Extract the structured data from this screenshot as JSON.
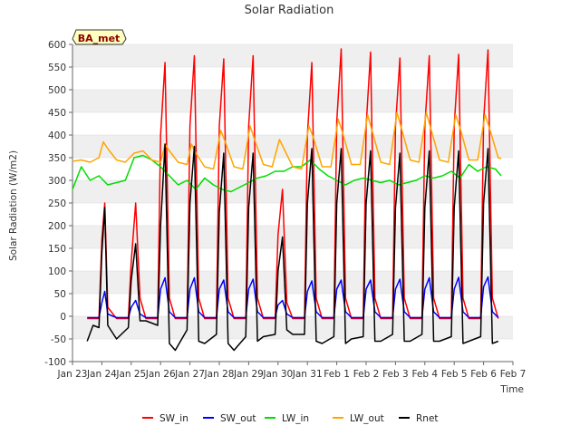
{
  "chart_data": {
    "type": "line",
    "title": "Solar Radiation",
    "xlabel": "Time",
    "ylabel": "Solar Radiation (W/m2)",
    "badge": "BA_met",
    "ylim": [
      -100,
      600
    ],
    "xlim": [
      0,
      15
    ],
    "yticks": [
      -100,
      -50,
      0,
      50,
      100,
      150,
      200,
      250,
      300,
      350,
      400,
      450,
      500,
      550,
      600
    ],
    "xticks": [
      {
        "pos": 0,
        "label": "Jan 23"
      },
      {
        "pos": 1,
        "label": "Jan 24"
      },
      {
        "pos": 2,
        "label": "Jan 25"
      },
      {
        "pos": 3,
        "label": "Jan 26"
      },
      {
        "pos": 4,
        "label": "Jan 27"
      },
      {
        "pos": 5,
        "label": "Jan 28"
      },
      {
        "pos": 6,
        "label": "Jan 29"
      },
      {
        "pos": 7,
        "label": "Jan 30"
      },
      {
        "pos": 8,
        "label": "Jan 31"
      },
      {
        "pos": 9,
        "label": "Feb 1"
      },
      {
        "pos": 10,
        "label": "Feb 2"
      },
      {
        "pos": 11,
        "label": "Feb 3"
      },
      {
        "pos": 12,
        "label": "Feb 4"
      },
      {
        "pos": 13,
        "label": "Feb 5"
      },
      {
        "pos": 14,
        "label": "Feb 6"
      },
      {
        "pos": 15,
        "label": "Feb 7"
      }
    ],
    "grid": true,
    "legend_position": "bottom",
    "series": [
      {
        "name": "SW_in",
        "color": "#ff0000",
        "x": [
          0.5,
          0.9,
          1.0,
          1.1,
          1.2,
          1.5,
          1.9,
          2.0,
          2.15,
          2.3,
          2.5,
          2.9,
          3.0,
          3.15,
          3.3,
          3.5,
          3.9,
          4.0,
          4.15,
          4.3,
          4.5,
          4.9,
          5.0,
          5.15,
          5.3,
          5.5,
          5.9,
          6.0,
          6.15,
          6.3,
          6.5,
          6.9,
          7.0,
          7.15,
          7.3,
          7.5,
          7.9,
          8.0,
          8.15,
          8.3,
          8.5,
          8.9,
          9.0,
          9.15,
          9.3,
          9.5,
          9.9,
          10.0,
          10.15,
          10.3,
          10.5,
          10.9,
          11.0,
          11.15,
          11.3,
          11.5,
          11.9,
          12.0,
          12.15,
          12.3,
          12.5,
          12.9,
          13.0,
          13.15,
          13.3,
          13.5,
          13.9,
          14.0,
          14.15,
          14.3,
          14.5
        ],
        "y": [
          -5,
          -5,
          170,
          250,
          20,
          -5,
          -5,
          120,
          250,
          40,
          -5,
          -5,
          400,
          560,
          40,
          -5,
          -5,
          420,
          575,
          40,
          -5,
          -5,
          420,
          568,
          40,
          -5,
          -5,
          420,
          575,
          40,
          -5,
          -5,
          180,
          280,
          30,
          -5,
          -5,
          400,
          560,
          40,
          -5,
          -5,
          430,
          590,
          40,
          -5,
          -5,
          420,
          583,
          40,
          -5,
          -5,
          420,
          570,
          40,
          -5,
          -5,
          420,
          575,
          40,
          -5,
          -5,
          420,
          578,
          40,
          -5,
          -5,
          430,
          588,
          40,
          -5
        ]
      },
      {
        "name": "SW_out",
        "color": "#0000ff",
        "x": [
          0.5,
          0.9,
          1.0,
          1.1,
          1.2,
          1.5,
          1.9,
          2.0,
          2.15,
          2.3,
          2.5,
          2.9,
          3.0,
          3.15,
          3.3,
          3.5,
          3.9,
          4.0,
          4.15,
          4.3,
          4.5,
          4.9,
          5.0,
          5.15,
          5.3,
          5.5,
          5.9,
          6.0,
          6.15,
          6.3,
          6.5,
          6.9,
          7.0,
          7.15,
          7.3,
          7.5,
          7.9,
          8.0,
          8.15,
          8.3,
          8.5,
          8.9,
          9.0,
          9.15,
          9.3,
          9.5,
          9.9,
          10.0,
          10.15,
          10.3,
          10.5,
          10.9,
          11.0,
          11.15,
          11.3,
          11.5,
          11.9,
          12.0,
          12.15,
          12.3,
          12.5,
          12.9,
          13.0,
          13.15,
          13.3,
          13.5,
          13.9,
          14.0,
          14.15,
          14.3,
          14.5
        ],
        "y": [
          -3,
          -3,
          30,
          55,
          5,
          -3,
          -3,
          20,
          35,
          5,
          -3,
          -3,
          60,
          85,
          10,
          -3,
          -3,
          60,
          85,
          10,
          -3,
          -3,
          60,
          80,
          10,
          -3,
          -3,
          60,
          82,
          10,
          -3,
          -3,
          25,
          35,
          5,
          -3,
          -3,
          55,
          78,
          10,
          -3,
          -3,
          60,
          80,
          10,
          -3,
          -3,
          60,
          80,
          10,
          -3,
          -3,
          60,
          82,
          10,
          -3,
          -3,
          60,
          85,
          10,
          -3,
          -3,
          60,
          86,
          10,
          -3,
          -3,
          65,
          87,
          10,
          -3
        ]
      },
      {
        "name": "LW_in",
        "color": "#00dd00",
        "x": [
          0.0,
          0.3,
          0.6,
          0.9,
          1.2,
          1.5,
          1.8,
          2.1,
          2.4,
          2.7,
          3.0,
          3.3,
          3.6,
          3.9,
          4.2,
          4.5,
          4.8,
          5.1,
          5.4,
          5.7,
          6.0,
          6.3,
          6.6,
          6.9,
          7.2,
          7.5,
          7.8,
          8.1,
          8.4,
          8.7,
          9.0,
          9.3,
          9.6,
          9.9,
          10.2,
          10.5,
          10.8,
          11.1,
          11.4,
          11.7,
          12.0,
          12.3,
          12.6,
          12.9,
          13.2,
          13.5,
          13.8,
          14.1,
          14.4,
          14.6
        ],
        "y": [
          280,
          330,
          300,
          310,
          290,
          295,
          300,
          350,
          355,
          345,
          330,
          310,
          290,
          300,
          280,
          305,
          290,
          280,
          275,
          285,
          295,
          305,
          310,
          320,
          320,
          330,
          330,
          345,
          325,
          310,
          300,
          290,
          300,
          305,
          300,
          295,
          300,
          290,
          295,
          300,
          310,
          305,
          310,
          320,
          305,
          335,
          320,
          330,
          325,
          310
        ]
      },
      {
        "name": "LW_out",
        "color": "#ffa500",
        "x": [
          0.0,
          0.3,
          0.6,
          0.9,
          1.05,
          1.2,
          1.5,
          1.8,
          2.1,
          2.4,
          2.7,
          3.0,
          3.15,
          3.3,
          3.6,
          3.9,
          4.05,
          4.2,
          4.5,
          4.8,
          5.05,
          5.2,
          5.5,
          5.8,
          6.05,
          6.2,
          6.5,
          6.8,
          7.05,
          7.2,
          7.5,
          7.8,
          8.05,
          8.2,
          8.5,
          8.8,
          9.05,
          9.2,
          9.5,
          9.8,
          10.05,
          10.2,
          10.5,
          10.8,
          11.05,
          11.2,
          11.5,
          11.8,
          12.05,
          12.2,
          12.5,
          12.8,
          13.05,
          13.2,
          13.5,
          13.8,
          14.05,
          14.2,
          14.5,
          14.6
        ],
        "y": [
          342,
          345,
          340,
          350,
          385,
          370,
          345,
          340,
          360,
          365,
          345,
          340,
          380,
          365,
          340,
          335,
          380,
          360,
          330,
          325,
          410,
          385,
          330,
          325,
          420,
          390,
          335,
          330,
          390,
          370,
          330,
          325,
          420,
          395,
          330,
          330,
          435,
          405,
          335,
          335,
          445,
          410,
          340,
          335,
          450,
          415,
          345,
          340,
          450,
          415,
          345,
          340,
          445,
          415,
          345,
          345,
          445,
          415,
          350,
          348
        ]
      },
      {
        "name": "Rnet",
        "color": "#000000",
        "x": [
          0.5,
          0.7,
          0.9,
          1.0,
          1.1,
          1.2,
          1.5,
          1.9,
          2.0,
          2.15,
          2.3,
          2.5,
          2.9,
          3.0,
          3.15,
          3.3,
          3.5,
          3.9,
          4.0,
          4.15,
          4.3,
          4.5,
          4.9,
          5.0,
          5.15,
          5.3,
          5.5,
          5.9,
          6.0,
          6.15,
          6.3,
          6.5,
          6.9,
          7.0,
          7.15,
          7.3,
          7.5,
          7.9,
          8.0,
          8.15,
          8.3,
          8.5,
          8.9,
          9.0,
          9.15,
          9.3,
          9.5,
          9.9,
          10.0,
          10.15,
          10.3,
          10.5,
          10.9,
          11.0,
          11.15,
          11.3,
          11.5,
          11.9,
          12.0,
          12.15,
          12.3,
          12.5,
          12.9,
          13.0,
          13.15,
          13.3,
          13.5,
          13.9,
          14.0,
          14.15,
          14.3,
          14.5
        ],
        "y": [
          -55,
          -20,
          -25,
          140,
          240,
          -20,
          -50,
          -25,
          80,
          160,
          -10,
          -10,
          -20,
          200,
          380,
          -60,
          -75,
          -30,
          250,
          375,
          -55,
          -60,
          -40,
          230,
          360,
          -60,
          -75,
          -45,
          240,
          360,
          -55,
          -45,
          -40,
          100,
          175,
          -30,
          -40,
          -40,
          250,
          370,
          -55,
          -60,
          -45,
          250,
          370,
          -60,
          -50,
          -45,
          250,
          365,
          -55,
          -55,
          -40,
          240,
          360,
          -55,
          -55,
          -40,
          240,
          365,
          -55,
          -55,
          -45,
          240,
          365,
          -60,
          -55,
          -45,
          250,
          370,
          -60,
          -55
        ]
      }
    ]
  }
}
